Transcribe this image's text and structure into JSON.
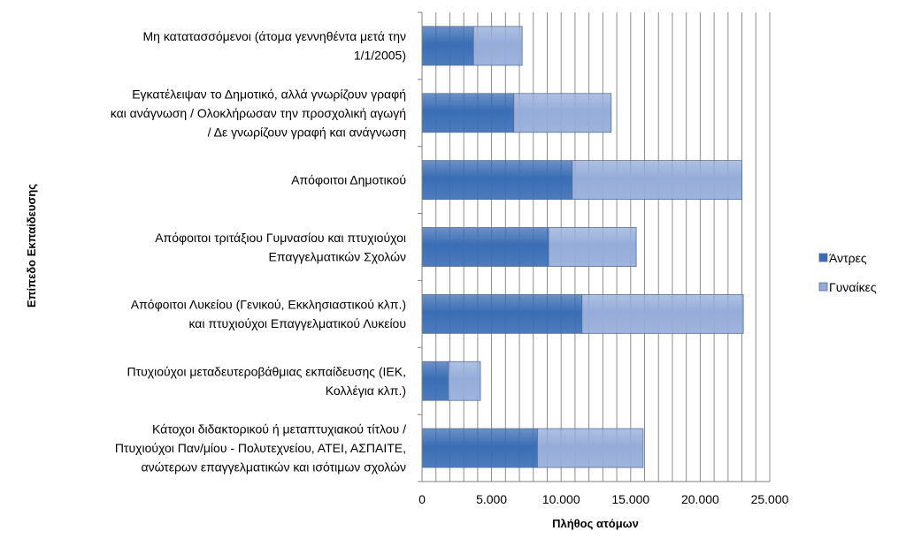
{
  "chart_data": {
    "type": "bar",
    "orientation": "horizontal",
    "stacked": true,
    "categories": [
      [
        "Μη κατατασσόμενοι (άτομα γεννηθέντα μετά την",
        "1/1/2005)"
      ],
      [
        "Εγκατέλειψαν το Δημοτικό, αλλά γνωρίζουν γραφή",
        "και ανάγνωση / Ολοκλήρωσαν την προσχολική αγωγή",
        "/ Δε γνωρίζουν γραφή και ανάγνωση"
      ],
      [
        "Απόφοιτοι Δημοτικού"
      ],
      [
        "Απόφοιτοι τριτάξιου Γυμνασίου και πτυχιούχοι",
        "Επαγγελματικών Σχολών"
      ],
      [
        "Απόφοιτοι Λυκείου (Γενικού, Εκκλησιαστικού κλπ.)",
        "και πτυχιούχοι Επαγγελματικού Λυκείου"
      ],
      [
        "Πτυχιούχοι μεταδευτεροβάθμιας εκπαίδευσης (ΙΕΚ,",
        "Κολλέγια κλπ.)"
      ],
      [
        "Κάτοχοι διδακτορικού ή μεταπτυχιακού τίτλου /",
        "Πτυχιούχοι Παν/μίου - Πολυτεχνείου, ΑΤΕΙ, ΑΣΠΑΙΤΕ,",
        "ανώτερων επαγγελματικών  και ισότιμων σχολών"
      ]
    ],
    "series": [
      {
        "name": "Άντρες",
        "color": "#3a6db5",
        "values": [
          3700,
          6600,
          10800,
          9100,
          11500,
          1900,
          8300
        ]
      },
      {
        "name": "Γυναίκες",
        "color": "#95acd9",
        "values": [
          3500,
          7000,
          12200,
          6300,
          11600,
          2300,
          7600
        ]
      }
    ],
    "xlabel": "Πλήθος ατόμων",
    "ylabel": "Επίπεδο Εκπαίδευσης",
    "xlim": [
      0,
      25000
    ],
    "ticks": [
      0,
      5000,
      10000,
      15000,
      20000,
      25000
    ],
    "tick_labels": [
      "0",
      "5.000",
      "10.000",
      "15.000",
      "20.000",
      "25.000"
    ],
    "minor_gridline_step": 1000,
    "grid": true,
    "legend_position": "right"
  }
}
